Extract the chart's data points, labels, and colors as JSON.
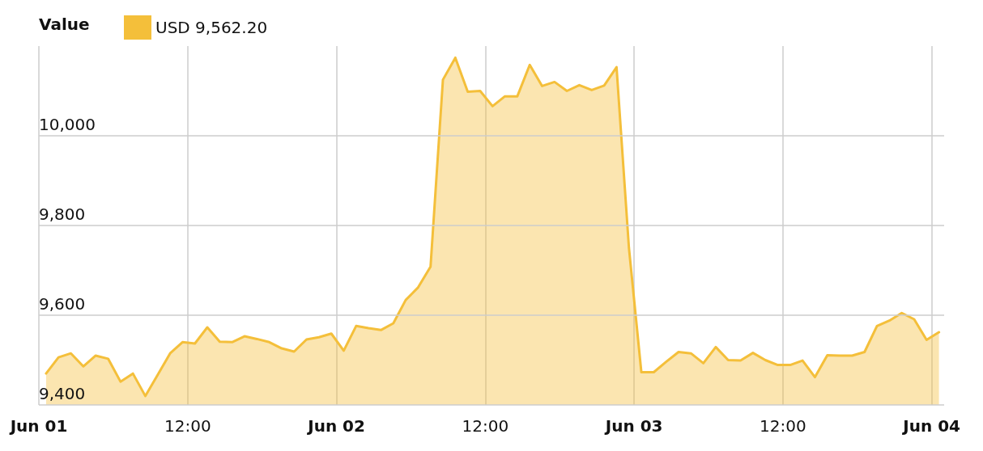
{
  "chart_data": {
    "type": "area",
    "legend_title": "Value",
    "legend": "top left",
    "grid": true,
    "marker": "none",
    "line_style": "solid",
    "x": [
      "--06-01T00:35",
      "--06-01T01:35",
      "--06-01T02:35",
      "--06-01T03:35",
      "--06-01T04:35",
      "--06-01T05:35",
      "--06-01T06:35",
      "--06-01T07:35",
      "--06-01T08:35",
      "--06-01T09:35",
      "--06-01T10:35",
      "--06-01T11:35",
      "--06-01T12:35",
      "--06-01T13:35",
      "--06-01T14:35",
      "--06-01T15:35",
      "--06-01T16:35",
      "--06-01T17:35",
      "--06-01T18:35",
      "--06-01T19:35",
      "--06-01T20:35",
      "--06-01T21:35",
      "--06-01T22:35",
      "--06-01T23:35",
      "--06-02T00:35",
      "--06-02T01:35",
      "--06-02T02:35",
      "--06-02T03:35",
      "--06-02T04:35",
      "--06-02T05:35",
      "--06-02T06:35",
      "--06-02T07:35",
      "--06-02T08:35",
      "--06-02T09:35",
      "--06-02T10:35",
      "--06-02T11:35",
      "--06-02T12:35",
      "--06-02T13:35",
      "--06-02T14:35",
      "--06-02T15:35",
      "--06-02T16:35",
      "--06-02T17:35",
      "--06-02T18:35",
      "--06-02T19:35",
      "--06-02T20:35",
      "--06-02T21:35",
      "--06-02T22:35",
      "--06-02T23:35",
      "--06-03T00:35",
      "--06-03T01:35",
      "--06-03T02:35",
      "--06-03T03:35",
      "--06-03T04:35",
      "--06-03T05:35",
      "--06-03T06:35",
      "--06-03T07:35",
      "--06-03T08:35",
      "--06-03T09:35",
      "--06-03T10:35",
      "--06-03T11:35",
      "--06-03T12:35",
      "--06-03T13:35",
      "--06-03T14:35",
      "--06-03T15:35",
      "--06-03T16:35",
      "--06-03T17:35",
      "--06-03T18:35",
      "--06-03T19:35",
      "--06-03T20:35",
      "--06-03T21:35",
      "--06-03T22:35",
      "--06-03T23:35",
      "--06-04T00:35"
    ],
    "series": [
      {
        "name": "USD 9,562.20",
        "color": "#f4bf3a",
        "values": [
          9470,
          9506,
          9515,
          9486,
          9510,
          9503,
          9452,
          9470,
          9420,
          9467,
          9515,
          9540,
          9537,
          9573,
          9541,
          9540,
          9553,
          9547,
          9540,
          9526,
          9519,
          9546,
          9551,
          9559,
          9521,
          9576,
          9571,
          9567,
          9582,
          9634,
          9662,
          9708,
          10125,
          10174,
          10098,
          10100,
          10066,
          10088,
          10088,
          10158,
          10111,
          10120,
          10100,
          10113,
          10102,
          10112,
          10153,
          9750,
          9473,
          9473,
          9496,
          9518,
          9515,
          9493,
          9529,
          9500,
          9499,
          9516,
          9500,
          9489,
          9489,
          9499,
          9462,
          9511,
          9510,
          9510,
          9518,
          9576,
          9588,
          9605,
          9591,
          9545,
          9562
        ]
      }
    ],
    "xlim": [
      "--06-01T00:00",
      "--06-04T01:00"
    ],
    "xticks": [
      {
        "value": "--06-01T00:00",
        "label": "Jun 01"
      },
      {
        "value": "--06-01T12:00",
        "label": "12:00"
      },
      {
        "value": "--06-02T00:00",
        "label": "Jun 02"
      },
      {
        "value": "--06-02T12:00",
        "label": "12:00"
      },
      {
        "value": "--06-03T00:00",
        "label": "Jun 03"
      },
      {
        "value": "--06-03T12:00",
        "label": "12:00"
      },
      {
        "value": "--06-04T00:00",
        "label": "Jun 04"
      }
    ],
    "ylim": [
      9400,
      10200
    ],
    "yticks": [
      {
        "value": 9400,
        "label": "9,400"
      },
      {
        "value": 9600,
        "label": "9,600"
      },
      {
        "value": 9800,
        "label": "9,800"
      },
      {
        "value": 10000,
        "label": "10,000"
      }
    ]
  }
}
